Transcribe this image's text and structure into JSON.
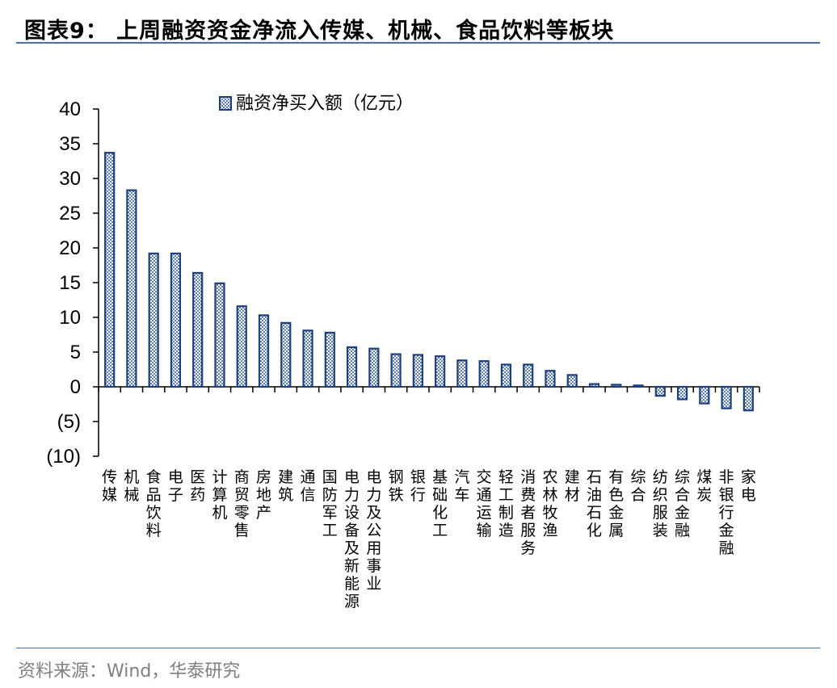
{
  "header": {
    "title": "图表9：  上周融资资金净流入传媒、机械、食品饮料等板块"
  },
  "footer": {
    "source": "资料来源：Wind，华泰研究"
  },
  "colors": {
    "bar_stroke": "#1f3f7a",
    "bar_pattern": "#5b80b8",
    "rule": "#4a6fa0"
  },
  "chart_data": {
    "type": "bar",
    "title": "",
    "xlabel": "",
    "ylabel": "",
    "ylim": [
      -10,
      40
    ],
    "yticks": [
      40,
      35,
      30,
      25,
      20,
      15,
      10,
      5,
      0,
      -5,
      -10
    ],
    "ytick_labels": [
      "40",
      "35",
      "30",
      "25",
      "20",
      "15",
      "10",
      "5",
      "0",
      "(5)",
      "(10)"
    ],
    "legend": {
      "position": "top-center",
      "label": "融资净买入额（亿元）"
    },
    "categories": [
      "传媒",
      "机械",
      "食品饮料",
      "电子",
      "医药",
      "计算机",
      "商贸零售",
      "房地产",
      "建筑",
      "通信",
      "国防军工",
      "电力设备及新能源",
      "电力及公用事业",
      "钢铁",
      "银行",
      "基础化工",
      "汽车",
      "交通运输",
      "轻工制造",
      "消费者服务",
      "农林牧渔",
      "建材",
      "石油石化",
      "有色金属",
      "综合",
      "纺织服装",
      "综合金融",
      "煤炭",
      "非银行金融",
      "家电"
    ],
    "series": [
      {
        "name": "融资净买入额（亿元）",
        "values": [
          33.7,
          28.3,
          19.2,
          19.2,
          16.4,
          14.9,
          11.6,
          10.3,
          9.2,
          8.1,
          7.8,
          5.7,
          5.5,
          4.7,
          4.6,
          4.4,
          3.8,
          3.7,
          3.2,
          3.2,
          2.3,
          1.7,
          0.4,
          0.3,
          0.2,
          -1.3,
          -1.8,
          -2.4,
          -3.1,
          -3.4
        ]
      }
    ]
  }
}
